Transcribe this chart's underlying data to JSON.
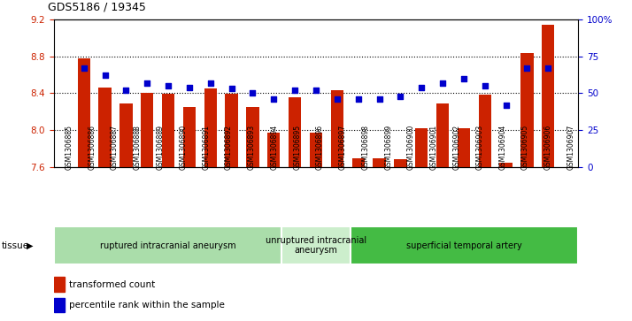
{
  "title": "GDS5186 / 19345",
  "samples": [
    "GSM1306885",
    "GSM1306886",
    "GSM1306887",
    "GSM1306888",
    "GSM1306889",
    "GSM1306890",
    "GSM1306891",
    "GSM1306892",
    "GSM1306893",
    "GSM1306894",
    "GSM1306895",
    "GSM1306896",
    "GSM1306897",
    "GSM1306898",
    "GSM1306899",
    "GSM1306900",
    "GSM1306901",
    "GSM1306902",
    "GSM1306903",
    "GSM1306904",
    "GSM1306905",
    "GSM1306906",
    "GSM1306907"
  ],
  "bar_values": [
    8.78,
    8.46,
    8.29,
    8.4,
    8.39,
    8.25,
    8.45,
    8.39,
    8.25,
    7.97,
    8.35,
    7.97,
    8.43,
    7.69,
    7.69,
    7.68,
    8.02,
    8.29,
    8.02,
    8.38,
    7.65,
    8.83,
    9.14
  ],
  "percentile_values": [
    67,
    62,
    52,
    57,
    55,
    54,
    57,
    53,
    50,
    46,
    52,
    52,
    46,
    46,
    46,
    48,
    54,
    57,
    60,
    55,
    42,
    67,
    67
  ],
  "ylim_left": [
    7.6,
    9.2
  ],
  "ylim_right": [
    0,
    100
  ],
  "yticks_left": [
    7.6,
    8.0,
    8.4,
    8.8,
    9.2
  ],
  "yticks_right": [
    0,
    25,
    50,
    75,
    100
  ],
  "bar_color": "#cc2200",
  "dot_color": "#0000cc",
  "plot_bg_color": "#ffffff",
  "fig_bg_color": "#ffffff",
  "xtick_bg_color": "#d8d8d8",
  "groups": [
    {
      "label": "ruptured intracranial aneurysm",
      "start": 0,
      "end": 10,
      "color": "#aaddaa"
    },
    {
      "label": "unruptured intracranial\naneurysm",
      "start": 10,
      "end": 13,
      "color": "#cceecc"
    },
    {
      "label": "superficial temporal artery",
      "start": 13,
      "end": 23,
      "color": "#44bb44"
    }
  ],
  "legend_bar_label": "transformed count",
  "legend_dot_label": "percentile rank within the sample",
  "tissue_label": "tissue",
  "ylabel_left_color": "#cc2200",
  "ylabel_right_color": "#0000cc",
  "grid_yticks": [
    8.0,
    8.4,
    8.8
  ]
}
